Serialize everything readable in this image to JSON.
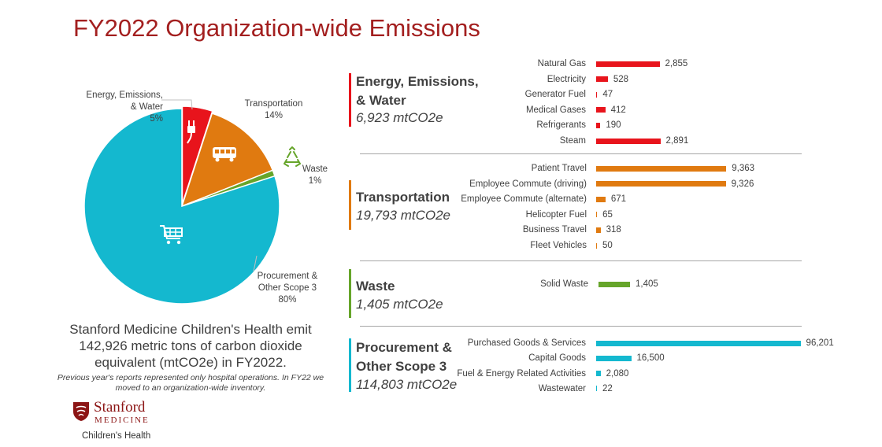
{
  "title": "FY2022 Organization-wide Emissions",
  "colors": {
    "energy": "#e8141c",
    "transportation": "#e07a10",
    "waste": "#66a52a",
    "procurement": "#14b8cf",
    "title": "#a31f1f"
  },
  "pie": {
    "labels": [
      {
        "name_lines": [
          "Energy, Emissions,",
          "& Water"
        ],
        "pct": "5%"
      },
      {
        "name_lines": [
          "Transportation"
        ],
        "pct": "14%"
      },
      {
        "name_lines": [
          "Waste"
        ],
        "pct": "1%"
      },
      {
        "name_lines": [
          "Procurement &",
          "Other Scope 3"
        ],
        "pct": "80%"
      }
    ],
    "icons": [
      "plug-icon",
      "bus-icon",
      "recycle-icon",
      "shopping-cart-icon"
    ]
  },
  "summary": {
    "main": "Stanford Medicine Children's Health emit 142,926 metric tons of carbon dioxide equivalent (mtCO2e) in FY2022.",
    "note": "Previous year's reports represented only hospital operations.  In FY22 we moved to an organization-wide inventory."
  },
  "logo": {
    "stanford": "Stanford",
    "medicine": "MEDICINE",
    "children": "Children's Health"
  },
  "chart_data": [
    {
      "type": "pie",
      "categories": [
        "Energy, Emissions, & Water",
        "Transportation",
        "Waste",
        "Procurement & Other Scope 3"
      ],
      "values": [
        5,
        14,
        1,
        80
      ],
      "unit": "%"
    },
    {
      "type": "bar",
      "orientation": "horizontal",
      "groups": [
        {
          "title_lines": [
            "Energy, Emissions,",
            "& Water"
          ],
          "total": "6,923 mtCO2e",
          "color_key": "energy",
          "categories": [
            "Natural Gas",
            "Electricity",
            "Generator Fuel",
            "Medical Gases",
            "Refrigerants",
            "Steam"
          ],
          "values": [
            2855,
            528,
            47,
            412,
            190,
            2891
          ],
          "value_labels": [
            "2,855",
            "528",
            "47",
            "412",
            "190",
            "2,891"
          ]
        },
        {
          "title_lines": [
            "Transportation"
          ],
          "total": "19,793 mtCO2e",
          "color_key": "transportation",
          "categories": [
            "Patient Travel",
            "Employee Commute (driving)",
            "Employee Commute (alternate)",
            "Helicopter Fuel",
            "Business Travel",
            "Fleet Vehicles"
          ],
          "values": [
            9363,
            9326,
            671,
            65,
            318,
            50
          ],
          "value_labels": [
            "9,363",
            "9,326",
            "671",
            "65",
            "318",
            "50"
          ]
        },
        {
          "title_lines": [
            "Waste"
          ],
          "total": "1,405 mtCO2e",
          "color_key": "waste",
          "categories": [
            "Solid Waste"
          ],
          "values": [
            1405
          ],
          "value_labels": [
            "1,405"
          ]
        },
        {
          "title_lines": [
            "Procurement &",
            "Other Scope 3"
          ],
          "total": "114,803 mtCO2e",
          "color_key": "procurement",
          "categories": [
            "Purchased Goods & Services",
            "Capital Goods",
            "Fuel & Energy Related Activities",
            "Wastewater"
          ],
          "values": [
            96201,
            16500,
            2080,
            22
          ],
          "value_labels": [
            "96,201",
            "16,500",
            "2,080",
            "22"
          ]
        }
      ]
    }
  ]
}
